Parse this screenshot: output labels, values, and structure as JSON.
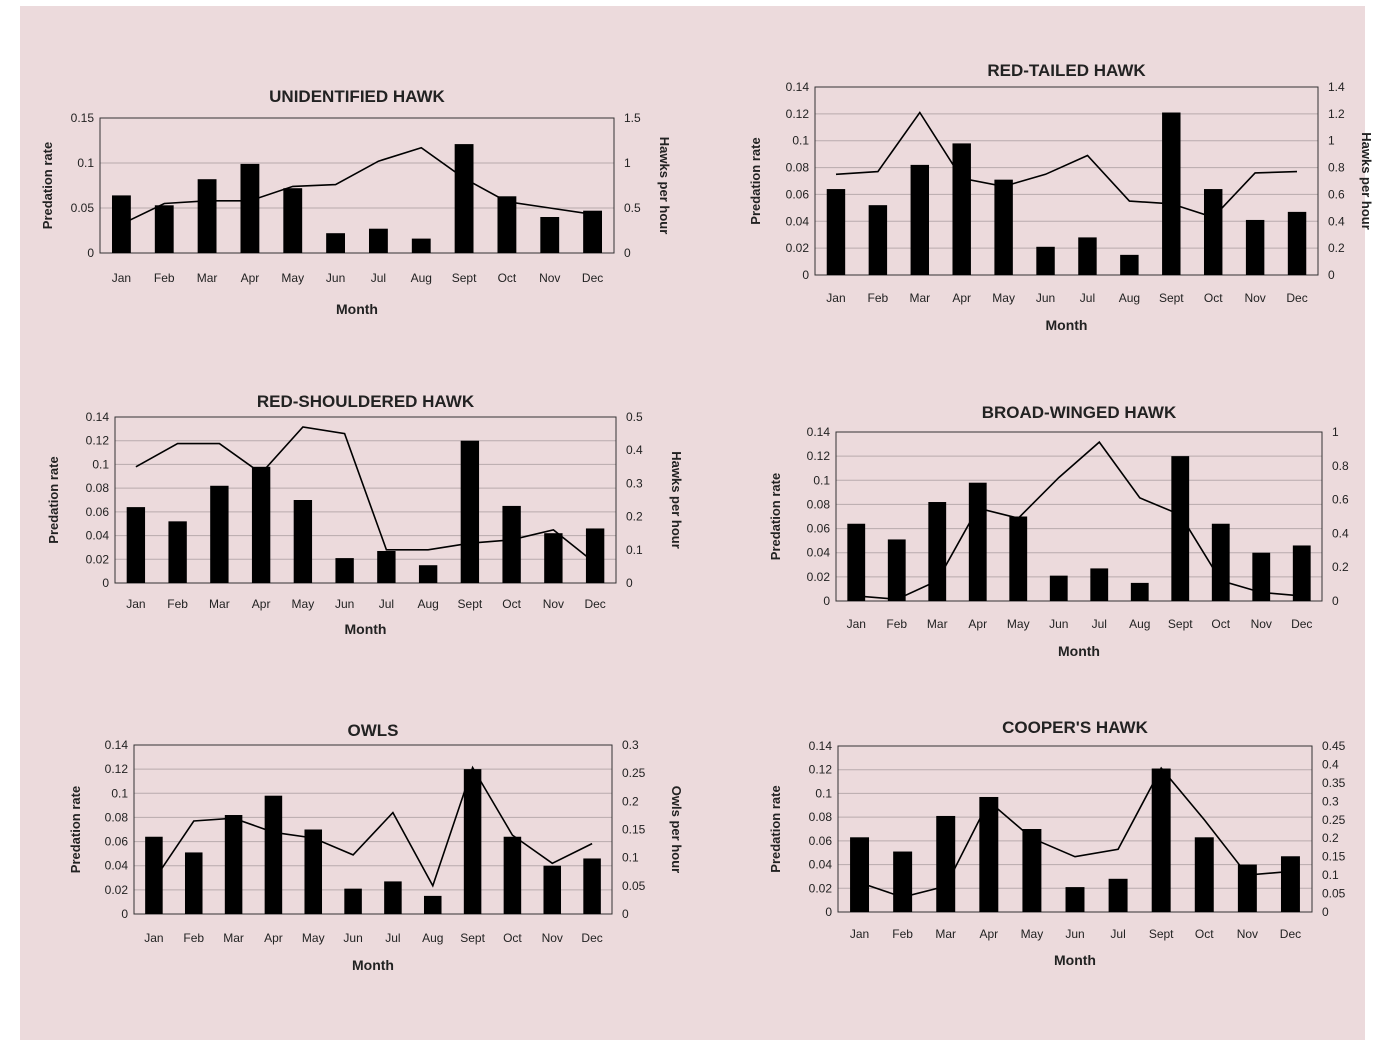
{
  "chart_data": [
    {
      "type": "bar",
      "title": "UNIDENTIFIED HAWK",
      "xlabel": "Month",
      "ylabel": "Predation rate",
      "y2label": "Hawks per hour",
      "categories": [
        "Jan",
        "Feb",
        "Mar",
        "Apr",
        "May",
        "Jun",
        "Jul",
        "Aug",
        "Sept",
        "Oct",
        "Nov",
        "Dec"
      ],
      "ylim": [
        0,
        0.15
      ],
      "yticks": [
        "0",
        "0.05",
        "0.1",
        "0.15"
      ],
      "y2lim": [
        0,
        1.5
      ],
      "y2ticks": [
        "0",
        "0.5",
        "1",
        "1.5"
      ],
      "grid": true,
      "series": [
        {
          "type": "bar",
          "axis": "left",
          "values": [
            0.064,
            0.053,
            0.082,
            0.099,
            0.072,
            0.022,
            0.027,
            0.016,
            0.121,
            0.063,
            0.04,
            0.047
          ]
        },
        {
          "type": "line",
          "axis": "right",
          "values": [
            0.32,
            0.55,
            0.58,
            0.58,
            0.74,
            0.76,
            1.02,
            1.17,
            0.83,
            0.57,
            0.5,
            0.43
          ]
        }
      ]
    },
    {
      "type": "bar",
      "title": "RED-TAILED HAWK",
      "xlabel": "Month",
      "ylabel": "Predation rate",
      "y2label": "Hawks per hour",
      "categories": [
        "Jan",
        "Feb",
        "Mar",
        "Apr",
        "May",
        "Jun",
        "Jul",
        "Aug",
        "Sept",
        "Oct",
        "Nov",
        "Dec"
      ],
      "ylim": [
        0,
        0.14
      ],
      "yticks": [
        "0",
        "0.02",
        "0.04",
        "0.06",
        "0.08",
        "0.1",
        "0.12",
        "0.14"
      ],
      "y2lim": [
        0,
        1.4
      ],
      "y2ticks": [
        "0",
        "0.2",
        "0.4",
        "0.6",
        "0.8",
        "1",
        "1.2",
        "1.4"
      ],
      "grid": true,
      "series": [
        {
          "type": "bar",
          "axis": "left",
          "values": [
            0.064,
            0.052,
            0.082,
            0.098,
            0.071,
            0.021,
            0.028,
            0.015,
            0.121,
            0.064,
            0.041,
            0.047
          ]
        },
        {
          "type": "line",
          "axis": "right",
          "values": [
            0.75,
            0.77,
            1.21,
            0.72,
            0.66,
            0.75,
            0.89,
            0.55,
            0.53,
            0.43,
            0.76,
            0.77
          ]
        }
      ]
    },
    {
      "type": "bar",
      "title": "RED-SHOULDERED HAWK",
      "xlabel": "Month",
      "ylabel": "Predation rate",
      "y2label": "Hawks per hour",
      "categories": [
        "Jan",
        "Feb",
        "Mar",
        "Apr",
        "May",
        "Jun",
        "Jul",
        "Aug",
        "Sept",
        "Oct",
        "Nov",
        "Dec"
      ],
      "ylim": [
        0,
        0.14
      ],
      "yticks": [
        "0",
        "0.02",
        "0.04",
        "0.06",
        "0.08",
        "0.1",
        "0.12",
        "0.14"
      ],
      "y2lim": [
        0,
        0.5
      ],
      "y2ticks": [
        "0",
        "0.1",
        "0.2",
        "0.3",
        "0.4",
        "0.5"
      ],
      "grid": true,
      "series": [
        {
          "type": "bar",
          "axis": "left",
          "values": [
            0.064,
            0.052,
            0.082,
            0.098,
            0.07,
            0.021,
            0.027,
            0.015,
            0.12,
            0.065,
            0.042,
            0.046
          ]
        },
        {
          "type": "line",
          "axis": "right",
          "values": [
            0.35,
            0.42,
            0.42,
            0.33,
            0.47,
            0.45,
            0.1,
            0.1,
            0.12,
            0.13,
            0.16,
            0.06
          ]
        }
      ]
    },
    {
      "type": "bar",
      "title": "BROAD-WINGED HAWK",
      "xlabel": "Month",
      "ylabel": "Predation rate",
      "y2label": "",
      "categories": [
        "Jan",
        "Feb",
        "Mar",
        "Apr",
        "May",
        "Jun",
        "Jul",
        "Aug",
        "Sept",
        "Oct",
        "Nov",
        "Dec"
      ],
      "ylim": [
        0,
        0.14
      ],
      "yticks": [
        "0",
        "0.02",
        "0.04",
        "0.06",
        "0.08",
        "0.1",
        "0.12",
        "0.14"
      ],
      "y2lim": [
        0,
        1
      ],
      "y2ticks": [
        "0",
        "0.2",
        "0.4",
        "0.6",
        "0.8",
        "1"
      ],
      "grid": true,
      "series": [
        {
          "type": "bar",
          "axis": "left",
          "values": [
            0.064,
            0.051,
            0.082,
            0.098,
            0.07,
            0.021,
            0.027,
            0.015,
            0.12,
            0.064,
            0.04,
            0.046
          ]
        },
        {
          "type": "line",
          "axis": "right",
          "values": [
            0.03,
            0.01,
            0.12,
            0.55,
            0.49,
            0.73,
            0.94,
            0.61,
            0.51,
            0.12,
            0.05,
            0.03
          ]
        }
      ]
    },
    {
      "type": "bar",
      "title": "OWLS",
      "xlabel": "Month",
      "ylabel": "Predation rate",
      "y2label": "Owls per hour",
      "categories": [
        "Jan",
        "Feb",
        "Mar",
        "Apr",
        "May",
        "Jun",
        "Jul",
        "Aug",
        "Sept",
        "Oct",
        "Nov",
        "Dec"
      ],
      "ylim": [
        0,
        0.14
      ],
      "yticks": [
        "0",
        "0.02",
        "0.04",
        "0.06",
        "0.08",
        "0.1",
        "0.12",
        "0.14"
      ],
      "y2lim": [
        0,
        0.3
      ],
      "y2ticks": [
        "0",
        "0.05",
        "0.1",
        "0.15",
        "0.2",
        "0.25",
        "0.3"
      ],
      "grid": true,
      "series": [
        {
          "type": "bar",
          "axis": "left",
          "values": [
            0.064,
            0.051,
            0.082,
            0.098,
            0.07,
            0.021,
            0.027,
            0.015,
            0.12,
            0.064,
            0.04,
            0.046
          ]
        },
        {
          "type": "line",
          "axis": "right",
          "values": [
            0.06,
            0.165,
            0.17,
            0.145,
            0.135,
            0.105,
            0.18,
            0.05,
            0.26,
            0.14,
            0.09,
            0.125
          ]
        }
      ]
    },
    {
      "type": "bar",
      "title": "COOPER'S HAWK",
      "xlabel": "Month",
      "ylabel": "Predation rate",
      "y2label": "",
      "categories": [
        "Jan",
        "Feb",
        "Mar",
        "Apr",
        "May",
        "Jun",
        "Jul",
        "Sept",
        "Oct",
        "Nov",
        "Dec"
      ],
      "ylim": [
        0,
        0.14
      ],
      "yticks": [
        "0",
        "0.02",
        "0.04",
        "0.06",
        "0.08",
        "0.1",
        "0.12",
        "0.14"
      ],
      "y2lim": [
        0,
        0.45
      ],
      "y2ticks": [
        "0",
        "0.05",
        "0.1",
        "0.15",
        "0.2",
        "0.25",
        "0.3",
        "0.35",
        "0.4",
        "0.45"
      ],
      "grid": true,
      "series": [
        {
          "type": "bar",
          "axis": "left",
          "values": [
            0.063,
            0.051,
            0.081,
            0.097,
            0.07,
            0.021,
            0.028,
            0.121,
            0.063,
            0.04,
            0.047
          ]
        },
        {
          "type": "line",
          "axis": "right",
          "values": [
            0.08,
            0.04,
            0.07,
            0.3,
            0.2,
            0.15,
            0.17,
            0.39,
            0.25,
            0.1,
            0.11
          ]
        }
      ]
    }
  ]
}
